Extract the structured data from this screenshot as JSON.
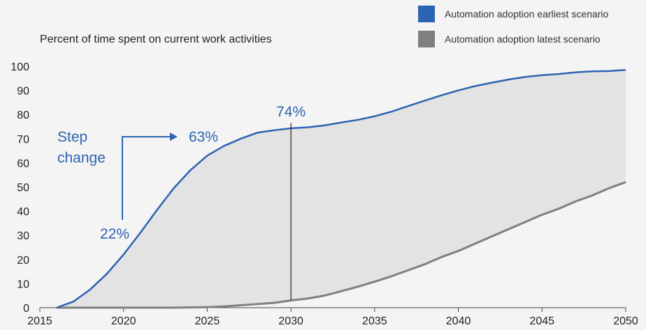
{
  "chart_data": {
    "type": "area",
    "title": "Percent of time spent on current work activities",
    "xlabel": "",
    "ylabel": "",
    "xlim": [
      2015,
      2050
    ],
    "ylim": [
      0,
      100
    ],
    "x_ticks": [
      2015,
      2020,
      2025,
      2030,
      2035,
      2040,
      2045,
      2050
    ],
    "y_ticks": [
      0,
      10,
      20,
      30,
      40,
      50,
      60,
      70,
      80,
      90,
      100
    ],
    "grid": false,
    "legend_position": "top-right",
    "series": [
      {
        "name": "Automation adoption earliest scenario",
        "color": "#2c63b2",
        "x": [
          2016,
          2017,
          2018,
          2019,
          2020,
          2021,
          2022,
          2023,
          2024,
          2025,
          2026,
          2027,
          2028,
          2029,
          2030,
          2031,
          2032,
          2033,
          2034,
          2035,
          2036,
          2037,
          2038,
          2039,
          2040,
          2041,
          2042,
          2043,
          2044,
          2045,
          2046,
          2047,
          2048,
          2049,
          2050
        ],
        "values": [
          0,
          2.5,
          7.5,
          14,
          22,
          31,
          40.5,
          49.5,
          57,
          63,
          67,
          70,
          72.5,
          73.5,
          74.3,
          74.7,
          75.5,
          76.7,
          77.8,
          79.3,
          81.2,
          83.5,
          85.8,
          88,
          90,
          91.8,
          93.2,
          94.5,
          95.6,
          96.3,
          96.8,
          97.5,
          97.9,
          98,
          98.5
        ]
      },
      {
        "name": "Automation adoption latest scenario",
        "color": "#7f7f7f",
        "x": [
          2016,
          2017,
          2018,
          2019,
          2020,
          2021,
          2022,
          2023,
          2024,
          2025,
          2026,
          2027,
          2028,
          2029,
          2030,
          2031,
          2032,
          2033,
          2034,
          2035,
          2036,
          2037,
          2038,
          2039,
          2040,
          2041,
          2042,
          2043,
          2044,
          2045,
          2046,
          2047,
          2048,
          2049,
          2050
        ],
        "values": [
          0,
          0,
          0,
          0,
          0,
          0,
          0,
          0,
          0.1,
          0.2,
          0.5,
          1,
          1.5,
          2,
          3,
          3.8,
          5,
          6.8,
          8.7,
          10.8,
          13,
          15.5,
          18,
          21,
          23.5,
          26.5,
          29.5,
          32.5,
          35.5,
          38.5,
          41,
          44,
          46.5,
          49.5,
          52
        ]
      }
    ],
    "annotations": {
      "step_change": [
        "Step",
        "change"
      ],
      "label_22": "22%",
      "label_63": "63%",
      "label_74": "74%",
      "reference_line_x": 2030
    }
  }
}
